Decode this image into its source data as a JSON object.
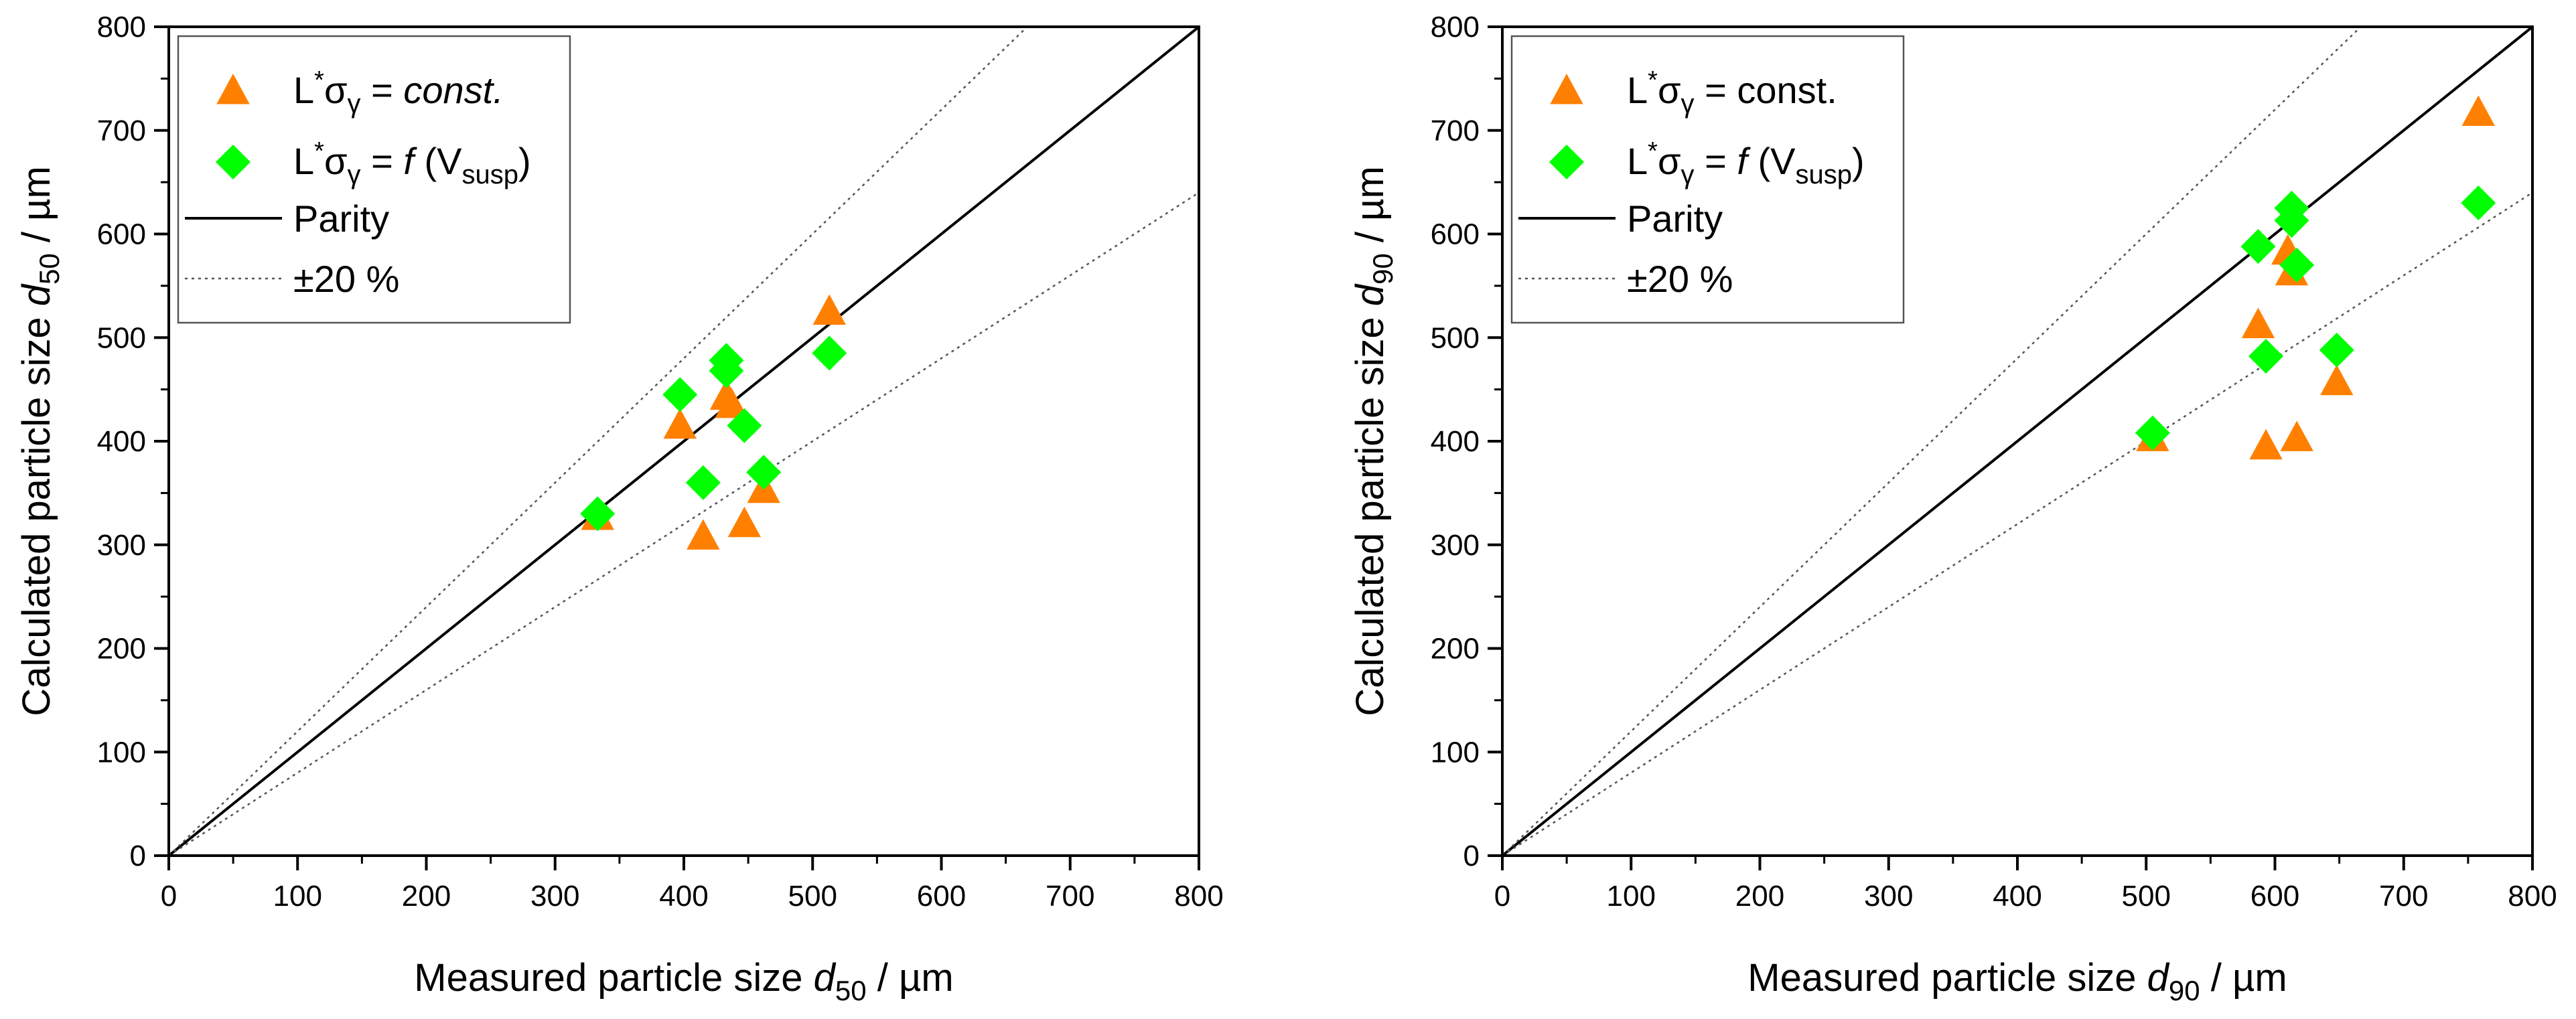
{
  "chart_data": [
    {
      "type": "scatter",
      "xlim": [
        0,
        800
      ],
      "ylim": [
        0,
        800
      ],
      "xticks": [
        "0",
        "100",
        "200",
        "300",
        "400",
        "500",
        "600",
        "700",
        "800"
      ],
      "yticks": [
        "0",
        "100",
        "200",
        "300",
        "400",
        "500",
        "600",
        "700",
        "800"
      ],
      "xlabel": {
        "prefix": "Measured particle size ",
        "var": "d",
        "sub": "50",
        "suffix": " / µm"
      },
      "ylabel": {
        "prefix": "Calculated particle size ",
        "var": "d",
        "sub": "50",
        "suffix": " / µm"
      },
      "legend_position": "top-left",
      "grid": false,
      "legend": [
        {
          "id": "const",
          "marker": "triangle",
          "color": "#FF8000",
          "pre": "L",
          "sup": "*",
          "sym": "σ",
          "sub": "γ",
          "eq": " = ",
          "val": "const.",
          "italic": true
        },
        {
          "id": "func",
          "marker": "diamond",
          "color": "#00FF00",
          "pre": "L",
          "sup": "*",
          "sym": "σ",
          "sub": "γ",
          "eq": " = ",
          "f": "f",
          "arg_pre": " (V",
          "arg_sub": "susp",
          "arg_post": ")"
        },
        {
          "id": "parity",
          "marker": "solid-line",
          "label": "Parity"
        },
        {
          "id": "band",
          "marker": "dotted-line",
          "label": "±20 %"
        }
      ],
      "series": [
        {
          "name": "L*σγ = const.",
          "marker": "triangle",
          "color": "#FF8000",
          "points": [
            [
              333,
              327
            ],
            [
              397,
              415
            ],
            [
              415,
              308
            ],
            [
              433,
              443
            ],
            [
              437,
              435
            ],
            [
              447,
              320
            ],
            [
              462,
              353
            ],
            [
              513,
              525
            ]
          ]
        },
        {
          "name": "L*σγ = f (Vsusp)",
          "marker": "diamond",
          "color": "#00FF00",
          "points": [
            [
              333,
              330
            ],
            [
              397,
              445
            ],
            [
              415,
              360
            ],
            [
              433,
              478
            ],
            [
              433,
              468
            ],
            [
              447,
              415
            ],
            [
              462,
              370
            ],
            [
              513,
              485
            ]
          ]
        }
      ],
      "reference_lines": [
        {
          "name": "Parity",
          "slope": 1.0,
          "style": "solid"
        },
        {
          "name": "+20 %",
          "slope": 1.2,
          "style": "dotted"
        },
        {
          "name": "-20 %",
          "slope": 0.8,
          "style": "dotted"
        }
      ]
    },
    {
      "type": "scatter",
      "xlim": [
        0,
        800
      ],
      "ylim": [
        0,
        800
      ],
      "xticks": [
        "0",
        "100",
        "200",
        "300",
        "400",
        "500",
        "600",
        "700",
        "800"
      ],
      "yticks": [
        "0",
        "100",
        "200",
        "300",
        "400",
        "500",
        "600",
        "700",
        "800"
      ],
      "xlabel": {
        "prefix": "Measured particle size ",
        "var": "d",
        "sub": "90",
        "suffix": " / µm"
      },
      "ylabel": {
        "prefix": "Calculated particle size ",
        "var": "d",
        "sub": "90",
        "suffix": " / µm"
      },
      "legend_position": "top-left",
      "grid": false,
      "legend": [
        {
          "id": "const",
          "marker": "triangle",
          "color": "#FF8000",
          "pre": "L",
          "sup": "*",
          "sym": "σ",
          "sub": "γ",
          "eq": " = ",
          "val": "const.",
          "italic": false
        },
        {
          "id": "func",
          "marker": "diamond",
          "color": "#00FF00",
          "pre": "L",
          "sup": "*",
          "sym": "σ",
          "sub": "γ",
          "eq": " = ",
          "f": "f",
          "arg_pre": " (V",
          "arg_sub": "susp",
          "arg_post": ")"
        },
        {
          "id": "parity",
          "marker": "solid-line",
          "label": "Parity"
        },
        {
          "id": "band",
          "marker": "dotted-line",
          "label": "±20 %"
        }
      ],
      "series": [
        {
          "name": "L*σγ = const.",
          "marker": "triangle",
          "color": "#FF8000",
          "points": [
            [
              505,
              403
            ],
            [
              587,
              512
            ],
            [
              593,
              395
            ],
            [
              610,
              583
            ],
            [
              613,
              563
            ],
            [
              617,
              403
            ],
            [
              648,
              457
            ],
            [
              758,
              717
            ]
          ]
        },
        {
          "name": "L*σγ = f (Vsusp)",
          "marker": "diamond",
          "color": "#00FF00",
          "points": [
            [
              505,
              408
            ],
            [
              587,
              588
            ],
            [
              593,
              482
            ],
            [
              613,
              625
            ],
            [
              613,
              613
            ],
            [
              617,
              570
            ],
            [
              648,
              488
            ],
            [
              758,
              630
            ]
          ]
        }
      ],
      "reference_lines": [
        {
          "name": "Parity",
          "slope": 1.0,
          "style": "solid"
        },
        {
          "name": "+20 %",
          "slope": 1.2,
          "style": "dotted"
        },
        {
          "name": "-20 %",
          "slope": 0.8,
          "style": "dotted"
        }
      ]
    }
  ]
}
